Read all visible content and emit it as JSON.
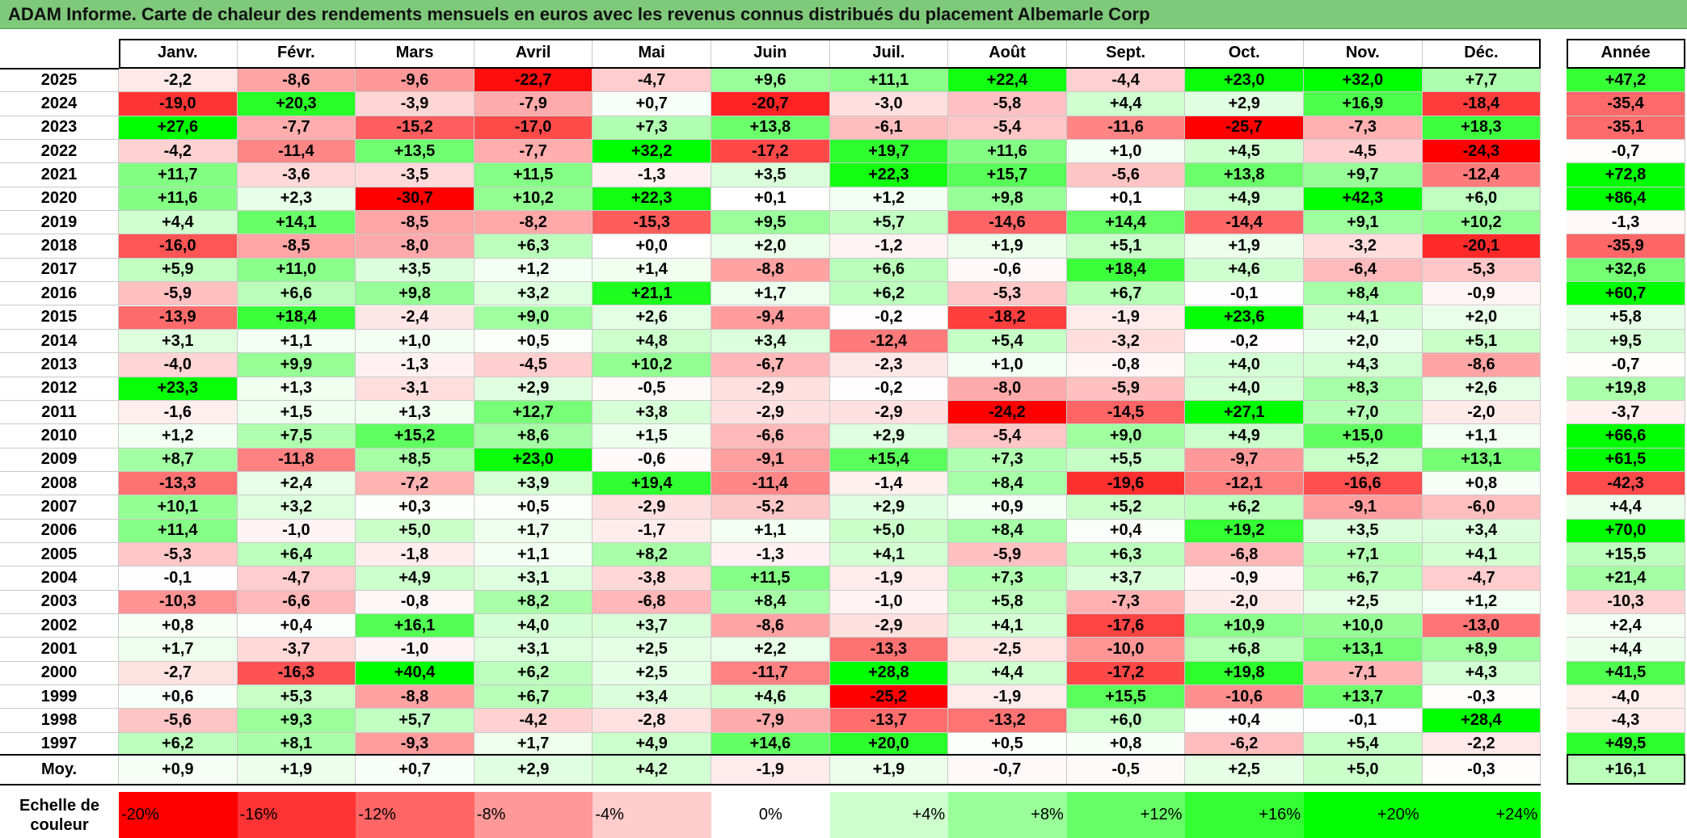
{
  "title": "ADAM Informe. Carte de chaleur des rendements mensuels en euros avec les revenus connus distribués du placement Albemarle Corp",
  "columns": [
    "Janv.",
    "Févr.",
    "Mars",
    "Avril",
    "Mai",
    "Juin",
    "Juil.",
    "Août",
    "Sept.",
    "Oct.",
    "Nov.",
    "Déc."
  ],
  "annual_header": "Année",
  "avg_label": "Moy.",
  "legend_label": "Echelle de couleur",
  "legend": [
    "-20%",
    "-16%",
    "-12%",
    "-8%",
    "-4%",
    "0%",
    "+4%",
    "+8%",
    "+12%",
    "+16%",
    "+20%",
    "+24%"
  ],
  "colors": {
    "negative_max": "#ff0000",
    "positive_max": "#00ff00",
    "neutral": "#ffffff",
    "title_bg": "#7fc97a"
  },
  "chart_data": {
    "type": "heatmap",
    "rows": [
      {
        "year": "2025",
        "months": [
          "-2,2",
          "-8,6",
          "-9,6",
          "-22,7",
          "-4,7",
          "+9,6",
          "+11,1",
          "+22,4",
          "-4,4",
          "+23,0",
          "+32,0",
          "+7,7"
        ],
        "annual": "+47,2"
      },
      {
        "year": "2024",
        "months": [
          "-19,0",
          "+20,3",
          "-3,9",
          "-7,9",
          "+0,7",
          "-20,7",
          "-3,0",
          "-5,8",
          "+4,4",
          "+2,9",
          "+16,9",
          "-18,4"
        ],
        "annual": "-35,4"
      },
      {
        "year": "2023",
        "months": [
          "+27,6",
          "-7,7",
          "-15,2",
          "-17,0",
          "+7,3",
          "+13,8",
          "-6,1",
          "-5,4",
          "-11,6",
          "-25,7",
          "-7,3",
          "+18,3"
        ],
        "annual": "-35,1"
      },
      {
        "year": "2022",
        "months": [
          "-4,2",
          "-11,4",
          "+13,5",
          "-7,7",
          "+32,2",
          "-17,2",
          "+19,7",
          "+11,6",
          "+1,0",
          "+4,5",
          "-4,5",
          "-24,3"
        ],
        "annual": "-0,7"
      },
      {
        "year": "2021",
        "months": [
          "+11,7",
          "-3,6",
          "-3,5",
          "+11,5",
          "-1,3",
          "+3,5",
          "+22,3",
          "+15,7",
          "-5,6",
          "+13,8",
          "+9,7",
          "-12,4"
        ],
        "annual": "+72,8"
      },
      {
        "year": "2020",
        "months": [
          "+11,6",
          "+2,3",
          "-30,7",
          "+10,2",
          "+22,3",
          "+0,1",
          "+1,2",
          "+9,8",
          "+0,1",
          "+4,9",
          "+42,3",
          "+6,0"
        ],
        "annual": "+86,4"
      },
      {
        "year": "2019",
        "months": [
          "+4,4",
          "+14,1",
          "-8,5",
          "-8,2",
          "-15,3",
          "+9,5",
          "+5,7",
          "-14,6",
          "+14,4",
          "-14,4",
          "+9,1",
          "+10,2"
        ],
        "annual": "-1,3"
      },
      {
        "year": "2018",
        "months": [
          "-16,0",
          "-8,5",
          "-8,0",
          "+6,3",
          "+0,0",
          "+2,0",
          "-1,2",
          "+1,9",
          "+5,1",
          "+1,9",
          "-3,2",
          "-20,1"
        ],
        "annual": "-35,9"
      },
      {
        "year": "2017",
        "months": [
          "+5,9",
          "+11,0",
          "+3,5",
          "+1,2",
          "+1,4",
          "-8,8",
          "+6,6",
          "-0,6",
          "+18,4",
          "+4,6",
          "-6,4",
          "-5,3"
        ],
        "annual": "+32,6"
      },
      {
        "year": "2016",
        "months": [
          "-5,9",
          "+6,6",
          "+9,8",
          "+3,2",
          "+21,1",
          "+1,7",
          "+6,2",
          "-5,3",
          "+6,7",
          "-0,1",
          "+8,4",
          "-0,9"
        ],
        "annual": "+60,7"
      },
      {
        "year": "2015",
        "months": [
          "-13,9",
          "+18,4",
          "-2,4",
          "+9,0",
          "+2,6",
          "-9,4",
          "-0,2",
          "-18,2",
          "-1,9",
          "+23,6",
          "+4,1",
          "+2,0"
        ],
        "annual": "+5,8"
      },
      {
        "year": "2014",
        "months": [
          "+3,1",
          "+1,1",
          "+1,0",
          "+0,5",
          "+4,8",
          "+3,4",
          "-12,4",
          "+5,4",
          "-3,2",
          "-0,2",
          "+2,0",
          "+5,1"
        ],
        "annual": "+9,5"
      },
      {
        "year": "2013",
        "months": [
          "-4,0",
          "+9,9",
          "-1,3",
          "-4,5",
          "+10,2",
          "-6,7",
          "-2,3",
          "+1,0",
          "-0,8",
          "+4,0",
          "+4,3",
          "-8,6"
        ],
        "annual": "-0,7"
      },
      {
        "year": "2012",
        "months": [
          "+23,3",
          "+1,3",
          "-3,1",
          "+2,9",
          "-0,5",
          "-2,9",
          "-0,2",
          "-8,0",
          "-5,9",
          "+4,0",
          "+8,3",
          "+2,6"
        ],
        "annual": "+19,8"
      },
      {
        "year": "2011",
        "months": [
          "-1,6",
          "+1,5",
          "+1,3",
          "+12,7",
          "+3,8",
          "-2,9",
          "-2,9",
          "-24,2",
          "-14,5",
          "+27,1",
          "+7,0",
          "-2,0"
        ],
        "annual": "-3,7"
      },
      {
        "year": "2010",
        "months": [
          "+1,2",
          "+7,5",
          "+15,2",
          "+8,6",
          "+1,5",
          "-6,6",
          "+2,9",
          "-5,4",
          "+9,0",
          "+4,9",
          "+15,0",
          "+1,1"
        ],
        "annual": "+66,6"
      },
      {
        "year": "2009",
        "months": [
          "+8,7",
          "-11,8",
          "+8,5",
          "+23,0",
          "-0,6",
          "-9,1",
          "+15,4",
          "+7,3",
          "+5,5",
          "-9,7",
          "+5,2",
          "+13,1"
        ],
        "annual": "+61,5"
      },
      {
        "year": "2008",
        "months": [
          "-13,3",
          "+2,4",
          "-7,2",
          "+3,9",
          "+19,4",
          "-11,4",
          "-1,4",
          "+8,4",
          "-19,6",
          "-12,1",
          "-16,6",
          "+0,8"
        ],
        "annual": "-42,3"
      },
      {
        "year": "2007",
        "months": [
          "+10,1",
          "+3,2",
          "+0,3",
          "+0,5",
          "-2,9",
          "-5,2",
          "+2,9",
          "+0,9",
          "+5,2",
          "+6,2",
          "-9,1",
          "-6,0"
        ],
        "annual": "+4,4"
      },
      {
        "year": "2006",
        "months": [
          "+11,4",
          "-1,0",
          "+5,0",
          "+1,7",
          "-1,7",
          "+1,1",
          "+5,0",
          "+8,4",
          "+0,4",
          "+19,2",
          "+3,5",
          "+3,4"
        ],
        "annual": "+70,0"
      },
      {
        "year": "2005",
        "months": [
          "-5,3",
          "+6,4",
          "-1,8",
          "+1,1",
          "+8,2",
          "-1,3",
          "+4,1",
          "-5,9",
          "+6,3",
          "-6,8",
          "+7,1",
          "+4,1"
        ],
        "annual": "+15,5"
      },
      {
        "year": "2004",
        "months": [
          "-0,1",
          "-4,7",
          "+4,9",
          "+3,1",
          "-3,8",
          "+11,5",
          "-1,9",
          "+7,3",
          "+3,7",
          "-0,9",
          "+6,7",
          "-4,7"
        ],
        "annual": "+21,4"
      },
      {
        "year": "2003",
        "months": [
          "-10,3",
          "-6,6",
          "-0,8",
          "+8,2",
          "-6,8",
          "+8,4",
          "-1,0",
          "+5,8",
          "-7,3",
          "-2,0",
          "+2,5",
          "+1,2"
        ],
        "annual": "-10,3"
      },
      {
        "year": "2002",
        "months": [
          "+0,8",
          "+0,4",
          "+16,1",
          "+4,0",
          "+3,7",
          "-8,6",
          "-2,9",
          "+4,1",
          "-17,6",
          "+10,9",
          "+10,0",
          "-13,0"
        ],
        "annual": "+2,4"
      },
      {
        "year": "2001",
        "months": [
          "+1,7",
          "-3,7",
          "-1,0",
          "+3,1",
          "+2,5",
          "+2,2",
          "-13,3",
          "-2,5",
          "-10,0",
          "+6,8",
          "+13,1",
          "+8,9"
        ],
        "annual": "+4,4"
      },
      {
        "year": "2000",
        "months": [
          "-2,7",
          "-16,3",
          "+40,4",
          "+6,2",
          "+2,5",
          "-11,7",
          "+28,8",
          "+4,4",
          "-17,2",
          "+19,8",
          "-7,1",
          "+4,3"
        ],
        "annual": "+41,5"
      },
      {
        "year": "1999",
        "months": [
          "+0,6",
          "+5,3",
          "-8,8",
          "+6,7",
          "+3,4",
          "+4,6",
          "-25,2",
          "-1,9",
          "+15,5",
          "-10,6",
          "+13,7",
          "-0,3"
        ],
        "annual": "-4,0"
      },
      {
        "year": "1998",
        "months": [
          "-5,6",
          "+9,3",
          "+5,7",
          "-4,2",
          "-2,8",
          "-7,9",
          "-13,7",
          "-13,2",
          "+6,0",
          "+0,4",
          "-0,1",
          "+28,4"
        ],
        "annual": "-4,3"
      },
      {
        "year": "1997",
        "months": [
          "+6,2",
          "+8,1",
          "-9,3",
          "+1,7",
          "+4,9",
          "+14,6",
          "+20,0",
          "+0,5",
          "+0,8",
          "-6,2",
          "+5,4",
          "-2,2"
        ],
        "annual": "+49,5"
      }
    ],
    "averages": [
      "+0,9",
      "+1,9",
      "+0,7",
      "+2,9",
      "+4,2",
      "-1,9",
      "+1,9",
      "-0,7",
      "-0,5",
      "+2,5",
      "+5,0",
      "-0,3"
    ],
    "average_annual": "+16,1"
  }
}
